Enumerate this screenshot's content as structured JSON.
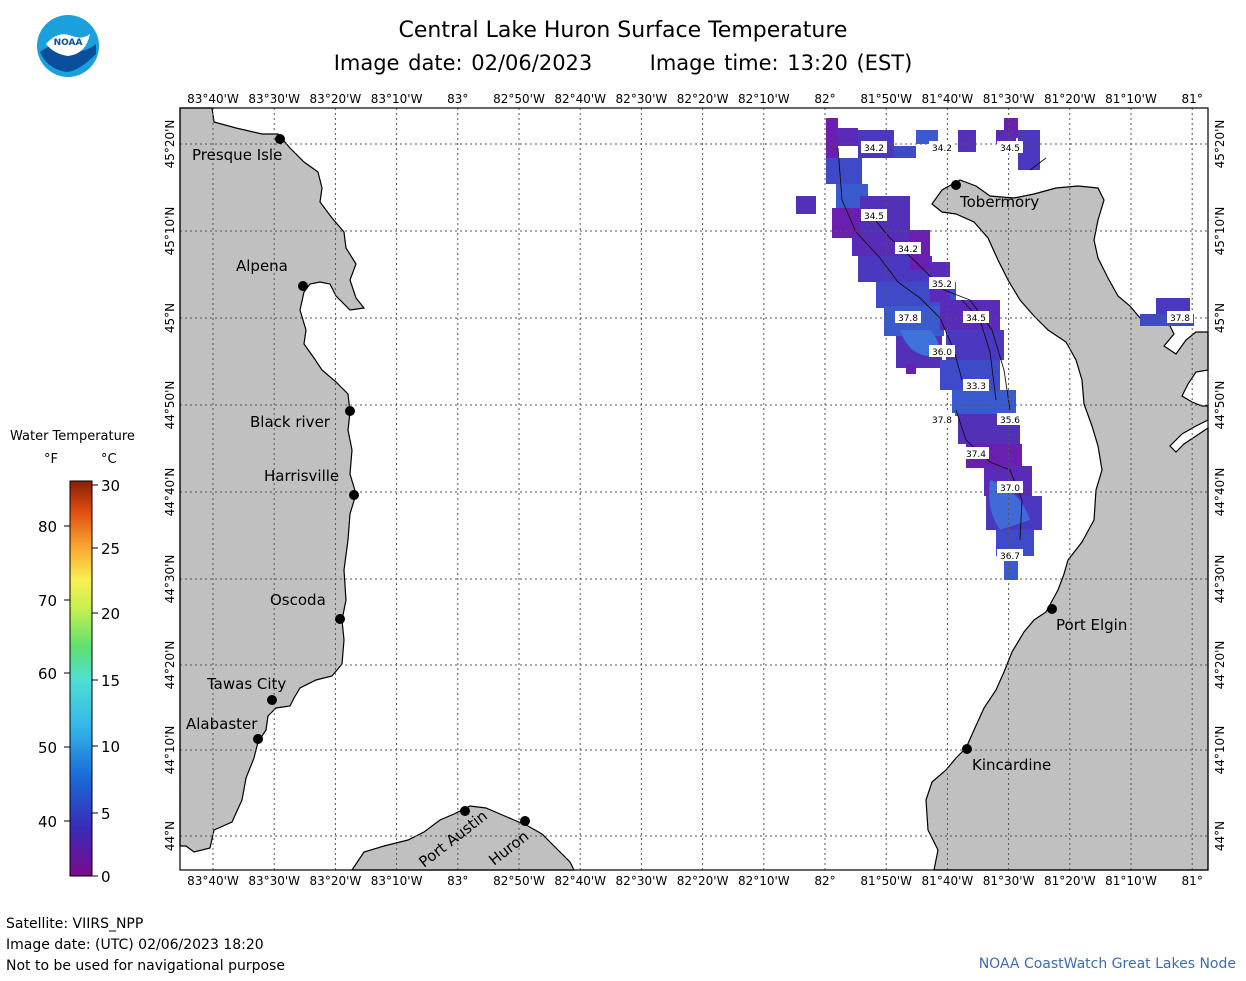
{
  "header": {
    "title": "Central Lake Huron Surface Temperature",
    "image_date_label": "Image date: 02/06/2023",
    "image_time_label": "Image time: 13:20 (EST)"
  },
  "logo": {
    "text": "NOAA",
    "icon": "noaa-logo"
  },
  "map": {
    "x_ticks": [
      "83°40'W",
      "83°30'W",
      "83°20'W",
      "83°10'W",
      "83°",
      "82°50'W",
      "82°40'W",
      "82°30'W",
      "82°20'W",
      "82°10'W",
      "82°",
      "81°50'W",
      "81°40'W",
      "81°30'W",
      "81°20'W",
      "81°10'W",
      "81°"
    ],
    "y_ticks": [
      "45°20'N",
      "45°10'N",
      "45°N",
      "44°50'N",
      "44°40'N",
      "44°30'N",
      "44°20'N",
      "44°10'N",
      "44°N"
    ],
    "places": [
      {
        "name": "Presque Isle"
      },
      {
        "name": "Alpena"
      },
      {
        "name": "Black river"
      },
      {
        "name": "Harrisville"
      },
      {
        "name": "Oscoda"
      },
      {
        "name": "Tawas City"
      },
      {
        "name": "Alabaster"
      },
      {
        "name": "Tobermory"
      },
      {
        "name": "Port Elgin"
      },
      {
        "name": "Kincardine"
      },
      {
        "name": "Port Austin"
      },
      {
        "name": "Huron"
      }
    ],
    "temperature_labels": [
      "34.2",
      "34.2",
      "34.5",
      "34.5",
      "34.2",
      "35.2",
      "37.8",
      "34.5",
      "36.0",
      "33.3",
      "37.8",
      "35.6",
      "37.4",
      "37.0",
      "36.7",
      "37.8"
    ],
    "colors": {
      "land": "#c0c0c0",
      "water": "#ffffff",
      "grid": "#555555"
    }
  },
  "legend": {
    "title": "Water Temperature",
    "unit_f": "°F",
    "unit_c": "°C",
    "f_ticks": [
      "80",
      "70",
      "60",
      "50",
      "40"
    ],
    "c_ticks": [
      "30",
      "25",
      "20",
      "15",
      "10",
      "5",
      "0"
    ]
  },
  "footer": {
    "satellite": "Satellite: VIIRS_NPP",
    "utc_date": "Image date: (UTC) 02/06/2023  18:20",
    "disclaimer": "Not to be used for navigational purpose",
    "credit": "NOAA CoastWatch Great Lakes Node"
  }
}
